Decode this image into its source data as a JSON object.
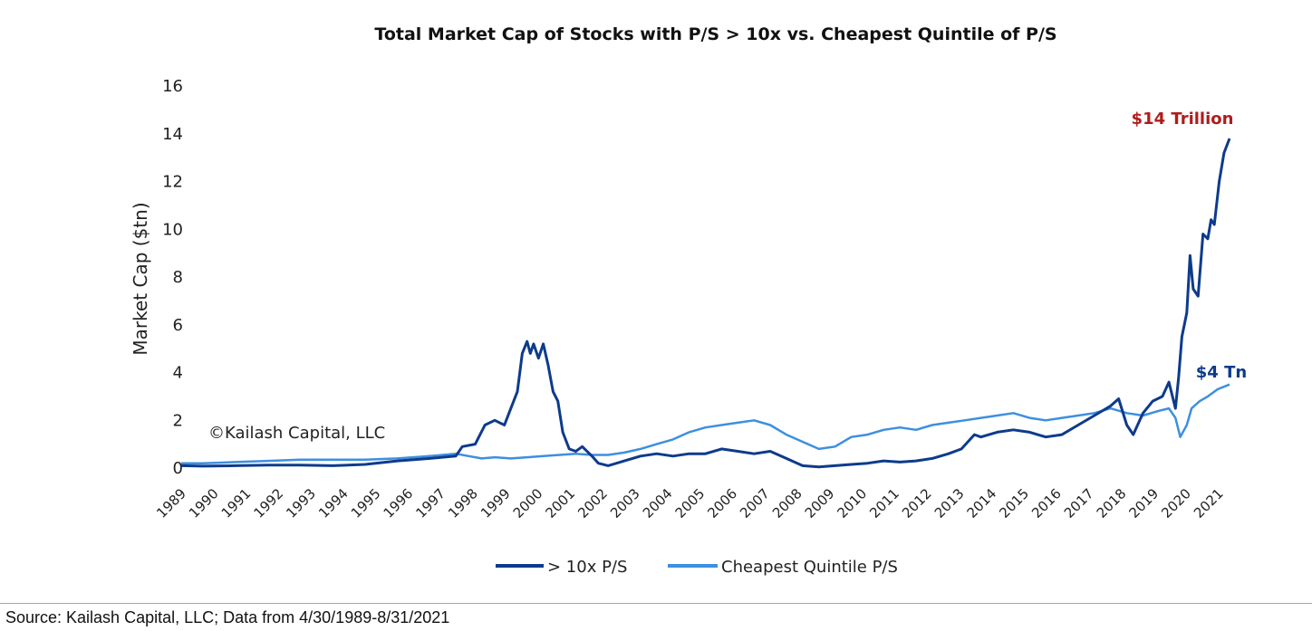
{
  "chart_data": {
    "type": "line",
    "title": "Total Market Cap of Stocks with P/S > 10x vs. Cheapest Quintile of P/S",
    "ylabel": "Market Cap ($tn)",
    "xlabel": "",
    "ylim": [
      0,
      16
    ],
    "yticks": [
      0,
      2,
      4,
      6,
      8,
      10,
      12,
      14,
      16
    ],
    "xlim": [
      1989.33,
      2021.67
    ],
    "xtick_labels": [
      "1989",
      "1990",
      "1991",
      "1992",
      "1993",
      "1994",
      "1995",
      "1996",
      "1997",
      "1998",
      "1999",
      "2000",
      "2001",
      "2002",
      "2003",
      "2004",
      "2005",
      "2006",
      "2007",
      "2008",
      "2009",
      "2010",
      "2011",
      "2012",
      "2013",
      "2014",
      "2015",
      "2016",
      "2017",
      "2018",
      "2019",
      "2020",
      "2021"
    ],
    "legend_position": "bottom-center",
    "grid": false,
    "series": [
      {
        "name": "> 10x P/S",
        "color": "#0d3b8c",
        "points": [
          [
            1989.33,
            0.1
          ],
          [
            1990.0,
            0.08
          ],
          [
            1991.0,
            0.1
          ],
          [
            1992.0,
            0.12
          ],
          [
            1993.0,
            0.12
          ],
          [
            1994.0,
            0.1
          ],
          [
            1995.0,
            0.15
          ],
          [
            1996.0,
            0.3
          ],
          [
            1997.0,
            0.4
          ],
          [
            1997.8,
            0.5
          ],
          [
            1998.0,
            0.9
          ],
          [
            1998.4,
            1.0
          ],
          [
            1998.7,
            1.8
          ],
          [
            1999.0,
            2.0
          ],
          [
            1999.3,
            1.8
          ],
          [
            1999.5,
            2.5
          ],
          [
            1999.7,
            3.2
          ],
          [
            1999.85,
            4.8
          ],
          [
            2000.0,
            5.3
          ],
          [
            2000.1,
            4.8
          ],
          [
            2000.2,
            5.2
          ],
          [
            2000.35,
            4.6
          ],
          [
            2000.5,
            5.2
          ],
          [
            2000.65,
            4.3
          ],
          [
            2000.8,
            3.2
          ],
          [
            2000.95,
            2.8
          ],
          [
            2001.1,
            1.5
          ],
          [
            2001.3,
            0.8
          ],
          [
            2001.5,
            0.7
          ],
          [
            2001.7,
            0.9
          ],
          [
            2002.0,
            0.5
          ],
          [
            2002.2,
            0.2
          ],
          [
            2002.5,
            0.1
          ],
          [
            2003.0,
            0.3
          ],
          [
            2003.5,
            0.5
          ],
          [
            2004.0,
            0.6
          ],
          [
            2004.5,
            0.5
          ],
          [
            2005.0,
            0.6
          ],
          [
            2005.5,
            0.6
          ],
          [
            2006.0,
            0.8
          ],
          [
            2006.5,
            0.7
          ],
          [
            2007.0,
            0.6
          ],
          [
            2007.5,
            0.7
          ],
          [
            2008.0,
            0.4
          ],
          [
            2008.5,
            0.1
          ],
          [
            2009.0,
            0.05
          ],
          [
            2009.5,
            0.1
          ],
          [
            2010.0,
            0.15
          ],
          [
            2010.5,
            0.2
          ],
          [
            2011.0,
            0.3
          ],
          [
            2011.5,
            0.25
          ],
          [
            2012.0,
            0.3
          ],
          [
            2012.5,
            0.4
          ],
          [
            2013.0,
            0.6
          ],
          [
            2013.4,
            0.8
          ],
          [
            2013.8,
            1.4
          ],
          [
            2014.0,
            1.3
          ],
          [
            2014.5,
            1.5
          ],
          [
            2015.0,
            1.6
          ],
          [
            2015.5,
            1.5
          ],
          [
            2016.0,
            1.3
          ],
          [
            2016.5,
            1.4
          ],
          [
            2017.0,
            1.8
          ],
          [
            2017.5,
            2.2
          ],
          [
            2018.0,
            2.6
          ],
          [
            2018.25,
            2.9
          ],
          [
            2018.5,
            1.8
          ],
          [
            2018.7,
            1.4
          ],
          [
            2019.0,
            2.3
          ],
          [
            2019.3,
            2.8
          ],
          [
            2019.6,
            3.0
          ],
          [
            2019.8,
            3.6
          ],
          [
            2020.0,
            2.5
          ],
          [
            2020.1,
            3.8
          ],
          [
            2020.2,
            5.5
          ],
          [
            2020.35,
            6.5
          ],
          [
            2020.45,
            8.9
          ],
          [
            2020.55,
            7.5
          ],
          [
            2020.7,
            7.2
          ],
          [
            2020.85,
            9.8
          ],
          [
            2021.0,
            9.6
          ],
          [
            2021.1,
            10.4
          ],
          [
            2021.2,
            10.2
          ],
          [
            2021.35,
            12.0
          ],
          [
            2021.5,
            13.2
          ],
          [
            2021.67,
            13.8
          ]
        ]
      },
      {
        "name": "Cheapest Quintile P/S",
        "color": "#3d8fe0",
        "points": [
          [
            1989.33,
            0.2
          ],
          [
            1990.0,
            0.2
          ],
          [
            1991.0,
            0.25
          ],
          [
            1992.0,
            0.3
          ],
          [
            1993.0,
            0.35
          ],
          [
            1994.0,
            0.35
          ],
          [
            1995.0,
            0.35
          ],
          [
            1996.0,
            0.4
          ],
          [
            1997.0,
            0.5
          ],
          [
            1997.8,
            0.6
          ],
          [
            1998.2,
            0.5
          ],
          [
            1998.6,
            0.4
          ],
          [
            1999.0,
            0.45
          ],
          [
            1999.5,
            0.4
          ],
          [
            2000.0,
            0.45
          ],
          [
            2000.5,
            0.5
          ],
          [
            2001.0,
            0.55
          ],
          [
            2001.5,
            0.6
          ],
          [
            2002.0,
            0.55
          ],
          [
            2002.5,
            0.55
          ],
          [
            2003.0,
            0.65
          ],
          [
            2003.5,
            0.8
          ],
          [
            2004.0,
            1.0
          ],
          [
            2004.5,
            1.2
          ],
          [
            2005.0,
            1.5
          ],
          [
            2005.5,
            1.7
          ],
          [
            2006.0,
            1.8
          ],
          [
            2006.5,
            1.9
          ],
          [
            2007.0,
            2.0
          ],
          [
            2007.5,
            1.8
          ],
          [
            2008.0,
            1.4
          ],
          [
            2008.5,
            1.1
          ],
          [
            2009.0,
            0.8
          ],
          [
            2009.5,
            0.9
          ],
          [
            2010.0,
            1.3
          ],
          [
            2010.5,
            1.4
          ],
          [
            2011.0,
            1.6
          ],
          [
            2011.5,
            1.7
          ],
          [
            2012.0,
            1.6
          ],
          [
            2012.5,
            1.8
          ],
          [
            2013.0,
            1.9
          ],
          [
            2013.5,
            2.0
          ],
          [
            2014.0,
            2.1
          ],
          [
            2014.5,
            2.2
          ],
          [
            2015.0,
            2.3
          ],
          [
            2015.5,
            2.1
          ],
          [
            2016.0,
            2.0
          ],
          [
            2016.5,
            2.1
          ],
          [
            2017.0,
            2.2
          ],
          [
            2017.5,
            2.3
          ],
          [
            2018.0,
            2.5
          ],
          [
            2018.5,
            2.3
          ],
          [
            2019.0,
            2.2
          ],
          [
            2019.5,
            2.4
          ],
          [
            2019.8,
            2.5
          ],
          [
            2020.0,
            2.1
          ],
          [
            2020.15,
            1.3
          ],
          [
            2020.35,
            1.8
          ],
          [
            2020.5,
            2.5
          ],
          [
            2020.75,
            2.8
          ],
          [
            2021.0,
            3.0
          ],
          [
            2021.3,
            3.3
          ],
          [
            2021.67,
            3.5
          ]
        ]
      }
    ],
    "annotations": [
      {
        "text": "$14 Trillion",
        "color": "#b01c1c"
      },
      {
        "text": "$4 Tn",
        "color": "#0d3b8c"
      }
    ],
    "watermark": "©Kailash Capital, LLC"
  },
  "footer": {
    "source": "Source: Kailash Capital, LLC; Data from 4/30/1989-8/31/2021"
  }
}
